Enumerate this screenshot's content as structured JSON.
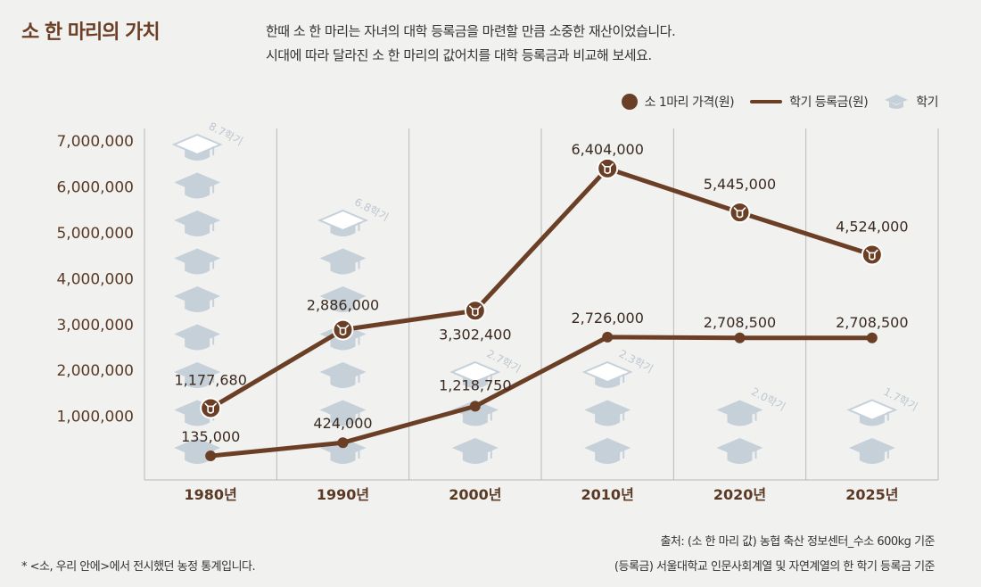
{
  "header": {
    "title": "소 한 마리의 가치",
    "desc_line1": "한때 소 한 마리는 자녀의 대학 등록금을 마련할 만큼 소중한 재산이었습니다.",
    "desc_line2": "시대에 따라 달라진 소 한 마리의 값어치를 대학 등록금과 비교해 보세요."
  },
  "legend": {
    "cattle": "소 1마리 가격(원)",
    "tuition": "학기 등록금(원)",
    "semester": "학기"
  },
  "colors": {
    "brown": "#6b3f26",
    "cap": "#c5d0d9",
    "grid": "#b9b9b9",
    "background": "#f1f1f0"
  },
  "chart_data": {
    "type": "line",
    "categories": [
      "1980년",
      "1990년",
      "2000년",
      "2010년",
      "2020년",
      "2025년"
    ],
    "y_ticks": [
      "7,000,000",
      "6,000,000",
      "5,000,000",
      "4,000,000",
      "3,000,000",
      "2,000,000",
      "1,000,000"
    ],
    "ylim": [
      0,
      7000000
    ],
    "grid": "vertical",
    "legend_position": "top-right",
    "series": [
      {
        "name": "소 1마리 가격(원)",
        "values": [
          1177680,
          2886000,
          3302400,
          6404000,
          5445000,
          4524000
        ],
        "labels": [
          "1,177,680",
          "2,886,000",
          "3,302,400",
          "6,404,000",
          "5,445,000",
          "4,524,000"
        ]
      },
      {
        "name": "학기 등록금(원)",
        "values": [
          135000,
          424000,
          1218750,
          2726000,
          2708500,
          2708500
        ],
        "labels": [
          "135,000",
          "424,000",
          "1,218,750",
          "2,726,000",
          "2,708,500",
          "2,708,500"
        ]
      }
    ],
    "semesters": [
      {
        "value": 8.7,
        "label": "8.7학기"
      },
      {
        "value": 6.8,
        "label": "6.8학기"
      },
      {
        "value": 2.7,
        "label": "2.7학기"
      },
      {
        "value": 2.3,
        "label": "2.3학기"
      },
      {
        "value": 2.0,
        "label": "2.0학기"
      },
      {
        "value": 1.7,
        "label": "1.7학기"
      }
    ]
  },
  "footer": {
    "note": "* <소, 우리 안에>에서 전시했던 농정 통계입니다.",
    "source1": "출처: (소 한 마리 값) 농협 축산 정보센터_수소 600kg 기준",
    "source2": "(등록금) 서울대학교 인문사회계열 및 자연계열의 한 학기 등록금 기준"
  }
}
